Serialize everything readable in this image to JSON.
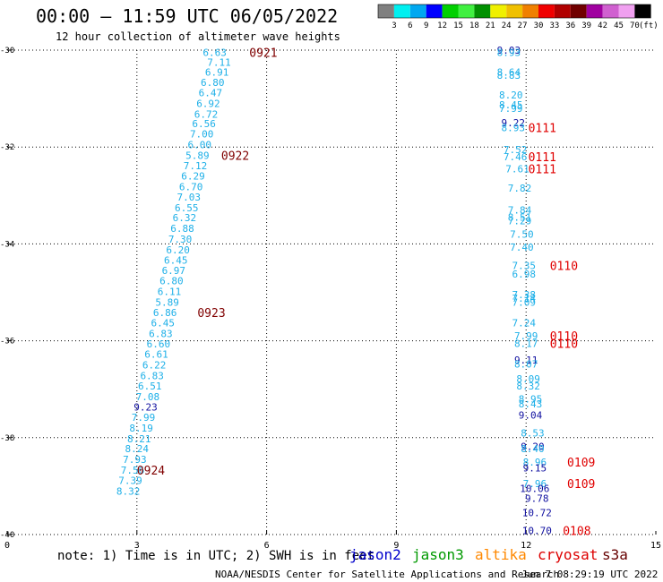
{
  "header": {
    "title": "00:00 – 11:59 UTC 06/05/2022",
    "subtitle": "12 hour collection of altimeter wave heights"
  },
  "colorbar": {
    "unit": "(ft)",
    "ticks": [
      "3",
      "6",
      "9",
      "12",
      "15",
      "18",
      "21",
      "24",
      "27",
      "30",
      "33",
      "36",
      "39",
      "42",
      "45",
      "70"
    ],
    "colors": [
      "#808080",
      "#00f0f0",
      "#00a8f0",
      "#0000ff",
      "#00d000",
      "#40f040",
      "#009000",
      "#f0f000",
      "#f0c000",
      "#f08000",
      "#f00000",
      "#b00000",
      "#700000",
      "#a000a0",
      "#d060d0",
      "#f0a0f0",
      "#000000"
    ]
  },
  "footer": {
    "note": "note:  1) Time is in UTC;  2) SWH is in feet",
    "legend": [
      {
        "name": "jason2",
        "color": "#0000cc"
      },
      {
        "name": "jason3",
        "color": "#009900"
      },
      {
        "name": "altika",
        "color": "#ff8800"
      },
      {
        "name": "cryosat",
        "color": "#dd0000"
      },
      {
        "name": "s3a",
        "color": "#660000"
      }
    ],
    "credit": "NOAA/NESDIS Center for Satellite Applications and Research",
    "generated": "Jun  7 08:29:19 UTC 2022"
  },
  "chart_data": {
    "type": "scatter",
    "title": "00:00 – 11:59 UTC 06/05/2022",
    "subtitle": "12 hour collection of altimeter wave heights",
    "x_ticks": [
      "0",
      "3",
      "6",
      "9",
      "12",
      "15"
    ],
    "xlim": [
      0,
      15
    ],
    "y_ticks": [
      "-30",
      "-32",
      "-34",
      "-36",
      "-38",
      "-40"
    ],
    "ylim": [
      -30,
      -40
    ],
    "grid": true,
    "colors": {
      "sky": "#1fb0e8",
      "navy": "#1010a0",
      "s3a": "#800000",
      "cryo": "#e00000"
    },
    "points": [
      {
        "x": 4.8,
        "y": -30.05,
        "v": "6.63",
        "c": "sky"
      },
      {
        "x": 4.9,
        "y": -30.25,
        "v": "7.11",
        "c": "sky"
      },
      {
        "x": 4.85,
        "y": -30.45,
        "v": "6.91",
        "c": "sky"
      },
      {
        "x": 4.75,
        "y": -30.67,
        "v": "6.80",
        "c": "sky"
      },
      {
        "x": 4.7,
        "y": -30.88,
        "v": "6.47",
        "c": "sky"
      },
      {
        "x": 4.65,
        "y": -31.1,
        "v": "6.92",
        "c": "sky"
      },
      {
        "x": 4.6,
        "y": -31.32,
        "v": "6.72",
        "c": "sky"
      },
      {
        "x": 4.55,
        "y": -31.52,
        "v": "6.56",
        "c": "sky"
      },
      {
        "x": 4.5,
        "y": -31.73,
        "v": "7.00",
        "c": "sky"
      },
      {
        "x": 4.45,
        "y": -31.95,
        "v": "6.00",
        "c": "sky"
      },
      {
        "x": 4.4,
        "y": -32.17,
        "v": "5.89",
        "c": "sky"
      },
      {
        "x": 4.35,
        "y": -32.38,
        "v": "7.12",
        "c": "sky"
      },
      {
        "x": 4.3,
        "y": -32.6,
        "v": "6.29",
        "c": "sky"
      },
      {
        "x": 4.25,
        "y": -32.82,
        "v": "6.70",
        "c": "sky"
      },
      {
        "x": 4.2,
        "y": -33.03,
        "v": "7.03",
        "c": "sky"
      },
      {
        "x": 4.15,
        "y": -33.25,
        "v": "6.55",
        "c": "sky"
      },
      {
        "x": 4.1,
        "y": -33.46,
        "v": "6.32",
        "c": "sky"
      },
      {
        "x": 4.05,
        "y": -33.68,
        "v": "6.88",
        "c": "sky"
      },
      {
        "x": 4.0,
        "y": -33.9,
        "v": "7.30",
        "c": "sky"
      },
      {
        "x": 3.95,
        "y": -34.12,
        "v": "6.20",
        "c": "sky"
      },
      {
        "x": 3.9,
        "y": -34.33,
        "v": "6.45",
        "c": "sky"
      },
      {
        "x": 3.85,
        "y": -34.55,
        "v": "6.97",
        "c": "sky"
      },
      {
        "x": 3.8,
        "y": -34.76,
        "v": "6.80",
        "c": "sky"
      },
      {
        "x": 3.75,
        "y": -34.98,
        "v": "6.11",
        "c": "sky"
      },
      {
        "x": 3.7,
        "y": -35.2,
        "v": "5.89",
        "c": "sky"
      },
      {
        "x": 3.65,
        "y": -35.42,
        "v": "6.86",
        "c": "sky"
      },
      {
        "x": 3.6,
        "y": -35.63,
        "v": "6.45",
        "c": "sky"
      },
      {
        "x": 3.55,
        "y": -35.85,
        "v": "6.83",
        "c": "sky"
      },
      {
        "x": 3.5,
        "y": -36.06,
        "v": "6.60",
        "c": "sky"
      },
      {
        "x": 3.45,
        "y": -36.28,
        "v": "6.61",
        "c": "sky"
      },
      {
        "x": 3.4,
        "y": -36.5,
        "v": "6.22",
        "c": "sky"
      },
      {
        "x": 3.35,
        "y": -36.72,
        "v": "6.83",
        "c": "sky"
      },
      {
        "x": 3.3,
        "y": -36.93,
        "v": "6.51",
        "c": "sky"
      },
      {
        "x": 3.25,
        "y": -37.15,
        "v": "7.08",
        "c": "sky"
      },
      {
        "x": 3.2,
        "y": -37.37,
        "v": "9.23",
        "c": "navy"
      },
      {
        "x": 3.15,
        "y": -37.58,
        "v": "7.99",
        "c": "sky"
      },
      {
        "x": 3.1,
        "y": -37.8,
        "v": "8.19",
        "c": "sky"
      },
      {
        "x": 3.05,
        "y": -38.02,
        "v": "8.21",
        "c": "sky"
      },
      {
        "x": 3.0,
        "y": -38.23,
        "v": "8.24",
        "c": "sky"
      },
      {
        "x": 2.95,
        "y": -38.45,
        "v": "7.93",
        "c": "sky"
      },
      {
        "x": 2.9,
        "y": -38.67,
        "v": "7.56",
        "c": "sky"
      },
      {
        "x": 2.85,
        "y": -38.88,
        "v": "7.39",
        "c": "sky"
      },
      {
        "x": 2.8,
        "y": -39.1,
        "v": "8.32",
        "c": "sky"
      },
      {
        "x": 11.6,
        "y": -30.0,
        "v": "9.03",
        "c": "navy"
      },
      {
        "x": 11.6,
        "y": -30.05,
        "v": "8.93",
        "c": "sky"
      },
      {
        "x": 11.6,
        "y": -30.45,
        "v": "8.64",
        "c": "sky"
      },
      {
        "x": 11.6,
        "y": -30.52,
        "v": "8.83",
        "c": "sky"
      },
      {
        "x": 11.65,
        "y": -30.92,
        "v": "8.20",
        "c": "sky"
      },
      {
        "x": 11.65,
        "y": -31.13,
        "v": "8.45",
        "c": "sky"
      },
      {
        "x": 11.65,
        "y": -31.2,
        "v": "7.99",
        "c": "sky"
      },
      {
        "x": 11.7,
        "y": -31.5,
        "v": "9.22",
        "c": "navy"
      },
      {
        "x": 11.7,
        "y": -31.6,
        "v": "8.93",
        "c": "sky"
      },
      {
        "x": 11.75,
        "y": -32.05,
        "v": "7.52",
        "c": "sky"
      },
      {
        "x": 11.75,
        "y": -32.2,
        "v": "7.46",
        "c": "sky"
      },
      {
        "x": 11.8,
        "y": -32.45,
        "v": "7.61",
        "c": "sky"
      },
      {
        "x": 11.85,
        "y": -32.85,
        "v": "7.82",
        "c": "sky"
      },
      {
        "x": 11.85,
        "y": -33.3,
        "v": "7.84",
        "c": "sky"
      },
      {
        "x": 11.85,
        "y": -33.45,
        "v": "8.51",
        "c": "sky"
      },
      {
        "x": 11.85,
        "y": -33.52,
        "v": "7.29",
        "c": "sky"
      },
      {
        "x": 11.9,
        "y": -33.8,
        "v": "7.50",
        "c": "sky"
      },
      {
        "x": 11.9,
        "y": -34.07,
        "v": "7.40",
        "c": "sky"
      },
      {
        "x": 11.95,
        "y": -34.45,
        "v": "7.35",
        "c": "sky"
      },
      {
        "x": 11.95,
        "y": -34.62,
        "v": "6.98",
        "c": "sky"
      },
      {
        "x": 11.95,
        "y": -35.05,
        "v": "7.38",
        "c": "sky"
      },
      {
        "x": 11.95,
        "y": -35.12,
        "v": "7.14",
        "c": "sky"
      },
      {
        "x": 11.95,
        "y": -35.2,
        "v": "7.09",
        "c": "sky"
      },
      {
        "x": 11.95,
        "y": -35.63,
        "v": "7.24",
        "c": "sky"
      },
      {
        "x": 12.0,
        "y": -35.9,
        "v": "7.99",
        "c": "sky"
      },
      {
        "x": 12.0,
        "y": -36.05,
        "v": "8.17",
        "c": "sky"
      },
      {
        "x": 12.0,
        "y": -36.4,
        "v": "9.11",
        "c": "navy"
      },
      {
        "x": 12.0,
        "y": -36.48,
        "v": "8.07",
        "c": "sky"
      },
      {
        "x": 12.05,
        "y": -36.78,
        "v": "8.09",
        "c": "sky"
      },
      {
        "x": 12.05,
        "y": -36.93,
        "v": "8.32",
        "c": "sky"
      },
      {
        "x": 12.1,
        "y": -37.2,
        "v": "8.95",
        "c": "sky"
      },
      {
        "x": 12.1,
        "y": -37.3,
        "v": "8.43",
        "c": "sky"
      },
      {
        "x": 12.1,
        "y": -37.53,
        "v": "9.04",
        "c": "navy"
      },
      {
        "x": 12.15,
        "y": -37.9,
        "v": "8.53",
        "c": "sky"
      },
      {
        "x": 12.15,
        "y": -38.18,
        "v": "9.20",
        "c": "navy"
      },
      {
        "x": 12.15,
        "y": -38.23,
        "v": "8.40",
        "c": "sky"
      },
      {
        "x": 12.2,
        "y": -38.5,
        "v": "8.96",
        "c": "sky"
      },
      {
        "x": 12.2,
        "y": -38.62,
        "v": "9.15",
        "c": "navy"
      },
      {
        "x": 12.2,
        "y": -38.95,
        "v": "7.96",
        "c": "sky"
      },
      {
        "x": 12.2,
        "y": -39.05,
        "v": "10.06",
        "c": "navy"
      },
      {
        "x": 12.25,
        "y": -39.25,
        "v": "9.78",
        "c": "navy"
      },
      {
        "x": 12.25,
        "y": -39.55,
        "v": "10.72",
        "c": "navy"
      },
      {
        "x": 12.25,
        "y": -39.92,
        "v": "10.70",
        "c": "navy"
      }
    ],
    "labels": [
      {
        "x": 5.6,
        "y": -30.05,
        "v": "0921",
        "c": "s3a"
      },
      {
        "x": 4.95,
        "y": -32.17,
        "v": "0922",
        "c": "s3a"
      },
      {
        "x": 4.4,
        "y": -35.42,
        "v": "0923",
        "c": "s3a"
      },
      {
        "x": 3.0,
        "y": -38.67,
        "v": "0924",
        "c": "s3a"
      },
      {
        "x": 12.05,
        "y": -31.6,
        "v": "0111",
        "c": "cryo"
      },
      {
        "x": 12.05,
        "y": -32.2,
        "v": "0111",
        "c": "cryo"
      },
      {
        "x": 12.05,
        "y": -32.45,
        "v": "0111",
        "c": "cryo"
      },
      {
        "x": 12.55,
        "y": -34.45,
        "v": "0110",
        "c": "cryo"
      },
      {
        "x": 12.55,
        "y": -35.9,
        "v": "0110",
        "c": "cryo"
      },
      {
        "x": 12.55,
        "y": -36.05,
        "v": "0110",
        "c": "cryo"
      },
      {
        "x": 12.95,
        "y": -38.5,
        "v": "0109",
        "c": "cryo"
      },
      {
        "x": 12.95,
        "y": -38.95,
        "v": "0109",
        "c": "cryo"
      },
      {
        "x": 12.85,
        "y": -39.92,
        "v": "0108",
        "c": "cryo"
      }
    ]
  }
}
